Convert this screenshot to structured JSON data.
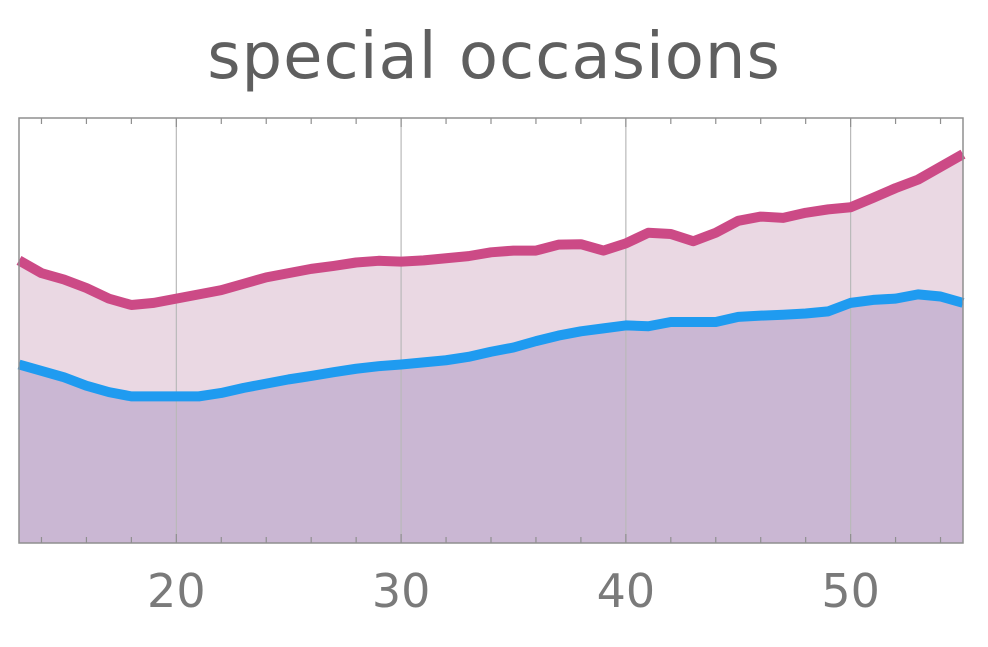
{
  "chart_data": {
    "type": "area",
    "title": "special occasions",
    "xlabel": "",
    "ylabel": "",
    "xlim": [
      13,
      55
    ],
    "ylim": [
      0,
      1
    ],
    "x_ticks": [
      "20",
      "30",
      "40",
      "50"
    ],
    "grid": "vertical",
    "x": [
      13,
      14,
      15,
      16,
      17,
      18,
      19,
      20,
      21,
      22,
      23,
      24,
      25,
      26,
      27,
      28,
      29,
      30,
      31,
      32,
      33,
      34,
      35,
      36,
      37,
      38,
      39,
      40,
      41,
      42,
      43,
      44,
      45,
      46,
      47,
      48,
      49,
      50,
      51,
      52,
      53,
      54,
      55
    ],
    "series": [
      {
        "color": "#cc4a86",
        "fill": "#ead8e3",
        "values": [
          0.665,
          0.635,
          0.62,
          0.6,
          0.575,
          0.56,
          0.565,
          0.575,
          0.585,
          0.595,
          0.61,
          0.625,
          0.635,
          0.645,
          0.652,
          0.66,
          0.664,
          0.662,
          0.665,
          0.67,
          0.675,
          0.684,
          0.688,
          0.688,
          0.702,
          0.703,
          0.688,
          0.705,
          0.73,
          0.727,
          0.71,
          0.73,
          0.758,
          0.768,
          0.765,
          0.777,
          0.785,
          0.79,
          0.812,
          0.835,
          0.855,
          0.885,
          0.915
        ]
      },
      {
        "color": "#1f9bf0",
        "fill": "#cab7d3",
        "values": [
          0.42,
          0.405,
          0.39,
          0.37,
          0.355,
          0.345,
          0.345,
          0.345,
          0.345,
          0.353,
          0.365,
          0.375,
          0.385,
          0.393,
          0.402,
          0.41,
          0.416,
          0.42,
          0.425,
          0.43,
          0.438,
          0.45,
          0.46,
          0.475,
          0.488,
          0.498,
          0.505,
          0.512,
          0.51,
          0.52,
          0.52,
          0.52,
          0.532,
          0.535,
          0.537,
          0.54,
          0.545,
          0.565,
          0.572,
          0.575,
          0.585,
          0.58,
          0.565
        ]
      }
    ]
  }
}
